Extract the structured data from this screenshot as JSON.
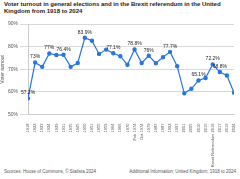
{
  "chart_data": {
    "type": "line",
    "title": "Voter turnout in general elections and in the Brexit referendum in the United Kingdom from 1918 to 2024",
    "y_label": "Voter turnout",
    "source": "Sources: House of Commons; © Statista 2024",
    "additional_information": "Additional Information: United Kingdom; 1918 to 2024",
    "categories": [
      "1918",
      "1922",
      "1923",
      "1924",
      "1929",
      "1931",
      "1935",
      "1945",
      "1950",
      "1951",
      "1955",
      "1959",
      "1964",
      "1966",
      "1970",
      "Feb 1974",
      "Oct 1974",
      "1979",
      "1983",
      "1987",
      "1992",
      "1997",
      "2001",
      "2005",
      "2010",
      "2015",
      "Brexit Referendum 2016",
      "2017",
      "2019",
      "2024"
    ],
    "values": [
      57.2,
      73,
      71.1,
      77,
      76.3,
      76.4,
      71.1,
      72.8,
      83.9,
      82.6,
      76.8,
      78.7,
      77.1,
      75.8,
      72,
      78.8,
      72.8,
      76,
      72.7,
      75.3,
      77.7,
      71.4,
      59.4,
      61.4,
      65.1,
      66.2,
      72.2,
      68.8,
      67.3,
      59.7
    ],
    "value_labels": [
      "57.2%",
      "73%",
      null,
      "77%",
      null,
      "76.4%",
      null,
      null,
      "83.9%",
      null,
      null,
      null,
      "77.1%",
      null,
      null,
      "78.8%",
      null,
      "76%",
      null,
      null,
      "77.7%",
      null,
      null,
      null,
      "65.1%",
      null,
      "72.2%",
      "68.8%",
      null,
      null
    ],
    "data_labels": true,
    "color": "#2876dd",
    "marker": "circle",
    "ylim": [
      50,
      90
    ],
    "yticks": [
      {
        "value": 50,
        "label": "50%"
      },
      {
        "value": 60,
        "label": "60%"
      },
      {
        "value": 70,
        "label": "70%"
      },
      {
        "value": 80,
        "label": "80%"
      },
      {
        "value": 90,
        "label": "90%"
      }
    ],
    "grid": true
  }
}
